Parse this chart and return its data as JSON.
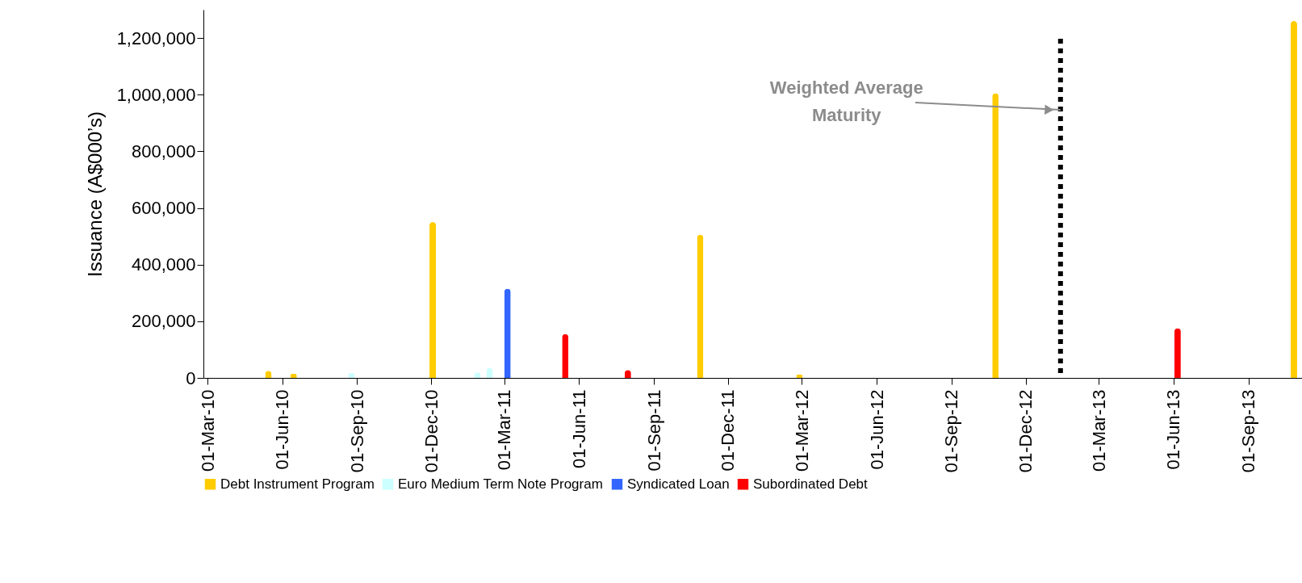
{
  "chart_data": {
    "type": "bar",
    "ylabel": "Issuance (A$000’s)",
    "xlim": [
      "2010-03-01",
      "2013-11-01"
    ],
    "ylim": [
      0,
      1300000
    ],
    "xticks": [
      {
        "value": "2010-03-01",
        "label": "01-Mar-10"
      },
      {
        "value": "2010-06-01",
        "label": "01-Jun-10"
      },
      {
        "value": "2010-09-01",
        "label": "01-Sep-10"
      },
      {
        "value": "2010-12-01",
        "label": "01-Dec-10"
      },
      {
        "value": "2011-03-01",
        "label": "01-Mar-11"
      },
      {
        "value": "2011-06-01",
        "label": "01-Jun-11"
      },
      {
        "value": "2011-09-01",
        "label": "01-Sep-11"
      },
      {
        "value": "2011-12-01",
        "label": "01-Dec-11"
      },
      {
        "value": "2012-03-01",
        "label": "01-Mar-12"
      },
      {
        "value": "2012-06-01",
        "label": "01-Jun-12"
      },
      {
        "value": "2012-09-01",
        "label": "01-Sep-12"
      },
      {
        "value": "2012-12-01",
        "label": "01-Dec-12"
      },
      {
        "value": "2013-03-01",
        "label": "01-Mar-13"
      },
      {
        "value": "2013-06-01",
        "label": "01-Jun-13"
      },
      {
        "value": "2013-09-01",
        "label": "01-Sep-13"
      }
    ],
    "yticks": [
      {
        "value": 0,
        "label": "0"
      },
      {
        "value": 200000,
        "label": "200,000"
      },
      {
        "value": 400000,
        "label": "400,000"
      },
      {
        "value": 600000,
        "label": "600,000"
      },
      {
        "value": 800000,
        "label": "800,000"
      },
      {
        "value": 1000000,
        "label": "1,000,000"
      },
      {
        "value": 1200000,
        "label": "1,200,000"
      }
    ],
    "series": [
      {
        "name": "Debt Instrument Program",
        "color": "#ffcc00",
        "x": [
          "2010-05-15",
          "2010-06-15",
          "2010-12-03",
          "2011-10-28",
          "2012-02-27",
          "2012-10-25",
          "2013-10-27"
        ],
        "values": [
          25000,
          15000,
          550000,
          505000,
          12000,
          1005000,
          1260000
        ]
      },
      {
        "name": "Euro Medium Term Note Program",
        "color": "#ccffff",
        "x": [
          "2010-08-25",
          "2011-01-27",
          "2011-02-11"
        ],
        "values": [
          18000,
          19000,
          35000
        ]
      },
      {
        "name": "Syndicated Loan",
        "color": "#3366ff",
        "x": [
          "2011-03-05"
        ],
        "values": [
          315000
        ]
      },
      {
        "name": "Subordinated Debt",
        "color": "#ff0000",
        "x": [
          "2011-05-15",
          "2011-07-31",
          "2013-06-06"
        ],
        "values": [
          155000,
          28000,
          175000
        ]
      }
    ],
    "ref_lines": [
      {
        "axis": "x",
        "value": "2013-01-13",
        "label": "Weighted Average\nMaturity",
        "color": "#000000",
        "line_style": "dotted"
      }
    ],
    "legend": "bottom",
    "grid": false
  }
}
